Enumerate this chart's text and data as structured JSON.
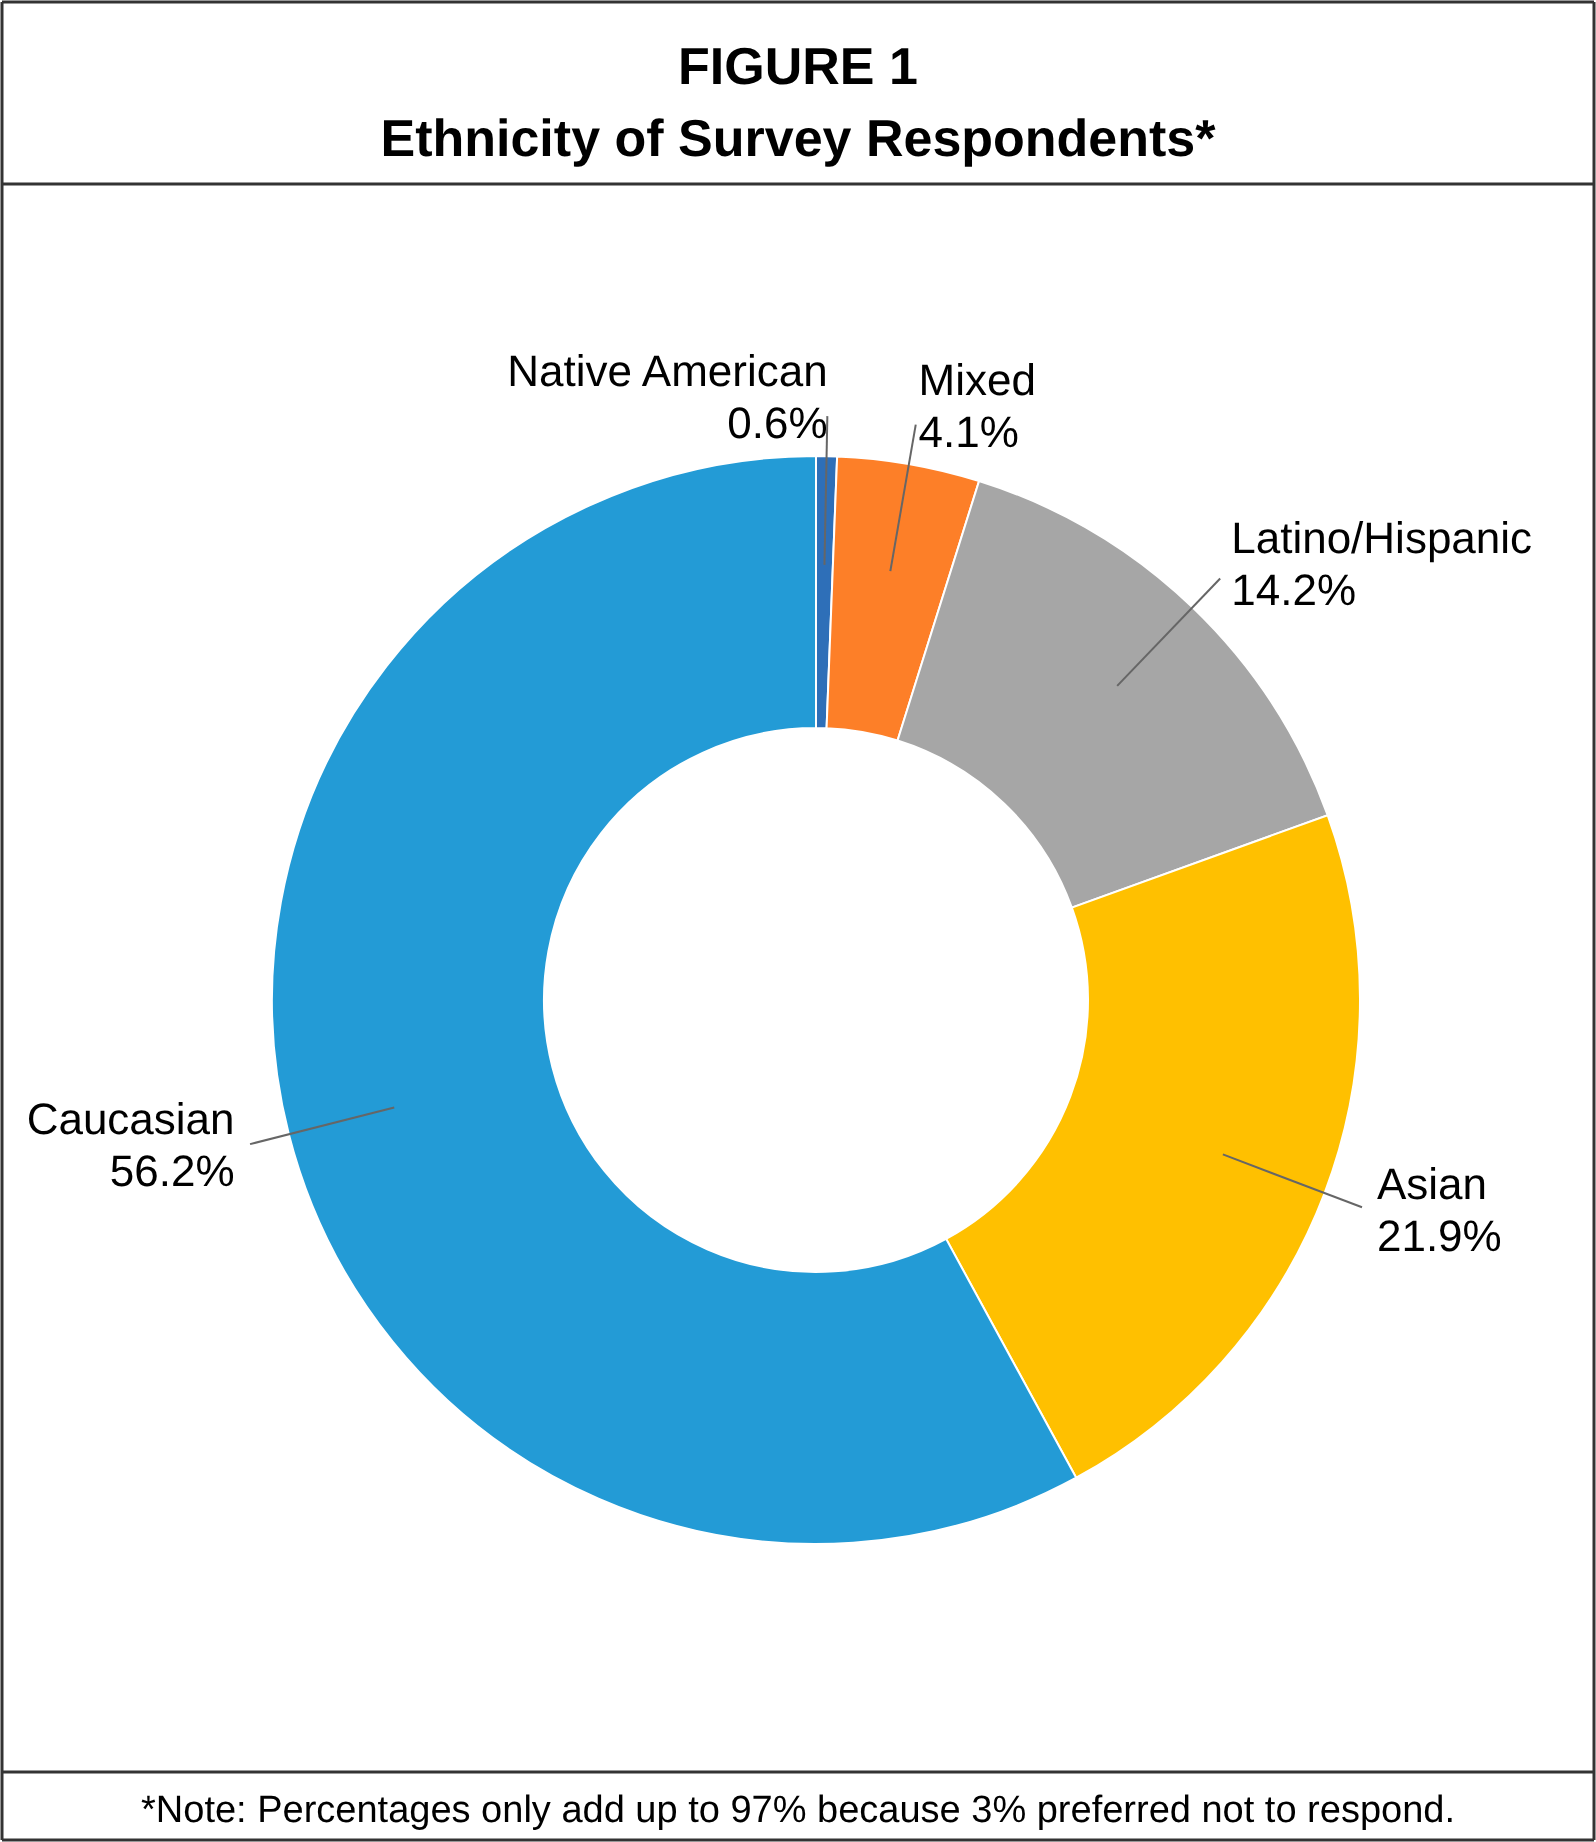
{
  "chart_data": {
    "type": "donut",
    "title": "FIGURE 1",
    "subtitle": "Ethnicity of Survey Respondents*",
    "categories": [
      "Native American",
      "Mixed",
      "Latino/Hispanic",
      "Asian",
      "Caucasian"
    ],
    "values": [
      0.6,
      4.1,
      14.2,
      21.9,
      56.2
    ],
    "colors": [
      "#2e6fb8",
      "#fd7f28",
      "#a6a6a6",
      "#ffc000",
      "#239bd6"
    ],
    "value_labels": [
      "0.6%",
      "4.1%",
      "14.2%",
      "21.9%",
      "56.2%"
    ],
    "annotations": [
      "*Note: Percentages only add up to 97% because 3% preferred not to respond."
    ]
  }
}
